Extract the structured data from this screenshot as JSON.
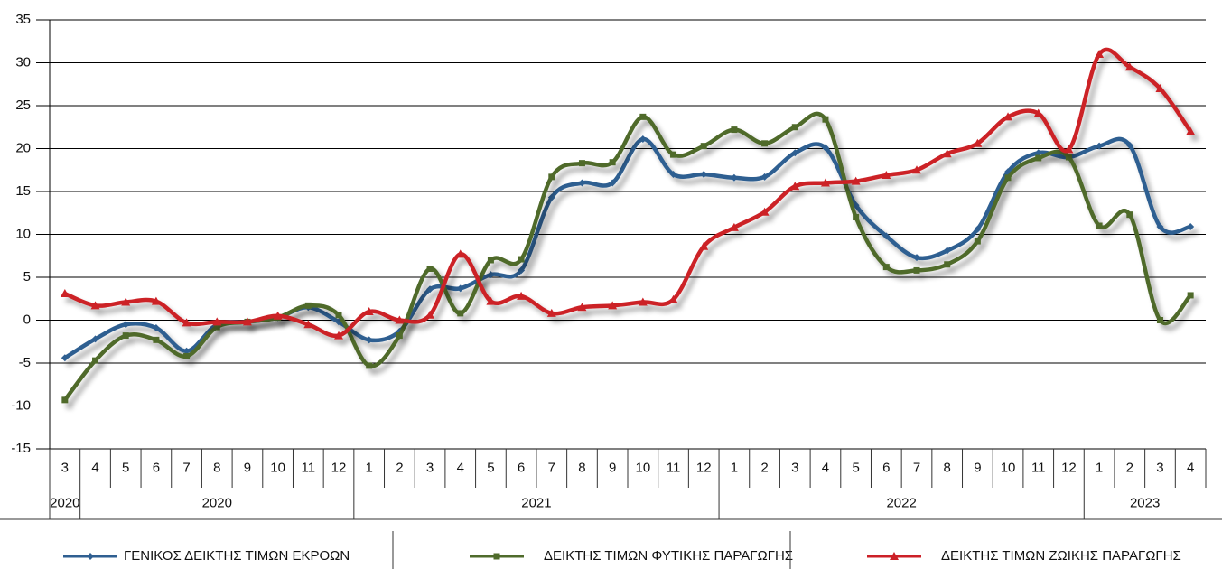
{
  "chart_data": {
    "type": "line",
    "groups": [
      {
        "label": "2020",
        "categories": [
          "3"
        ]
      },
      {
        "label": "2020",
        "categories": [
          "4",
          "5",
          "6",
          "7",
          "8",
          "9",
          "10",
          "11",
          "12"
        ]
      },
      {
        "label": "2021",
        "categories": [
          "1",
          "2",
          "3",
          "4",
          "5",
          "6",
          "7",
          "8",
          "9",
          "10",
          "11",
          "12"
        ]
      },
      {
        "label": "2022",
        "categories": [
          "1",
          "2",
          "3",
          "4",
          "5",
          "6",
          "7",
          "8",
          "9",
          "10",
          "11",
          "12"
        ]
      },
      {
        "label": "2023",
        "categories": [
          "1",
          "2",
          "3",
          "4"
        ]
      }
    ],
    "series": [
      {
        "name": "ΓΕΝΙΚΟΣ ΔΕΙΚΤΗΣ ΤΙΜΩΝ ΕΚΡΟΩΝ",
        "color": "#2f5f91",
        "marker": "diamond",
        "values": [
          -4.4,
          -2.2,
          -0.5,
          -0.9,
          -3.6,
          -0.5,
          -0.2,
          0.3,
          1.5,
          -0.2,
          -2.3,
          -1.3,
          3.6,
          3.7,
          5.3,
          5.8,
          14.3,
          16.0,
          16.0,
          21.1,
          17.0,
          17.0,
          16.6,
          16.7,
          19.5,
          20.1,
          13.4,
          9.8,
          7.3,
          8.1,
          10.6,
          17.3,
          19.5,
          19.0,
          20.3,
          20.4,
          10.9,
          10.9
        ]
      },
      {
        "name": "ΔΕΙΚΤΗΣ ΤΙΜΩΝ ΦΥΤΙΚΗΣ ΠΑΡΑΓΩΓΗΣ",
        "color": "#4f6b2b",
        "marker": "square",
        "values": [
          -9.3,
          -4.7,
          -1.8,
          -2.3,
          -4.2,
          -0.8,
          -0.2,
          0.3,
          1.7,
          0.6,
          -5.3,
          -1.8,
          6.0,
          0.8,
          7.0,
          7.1,
          16.7,
          18.3,
          18.4,
          23.7,
          19.3,
          20.3,
          22.2,
          20.6,
          22.5,
          23.4,
          12.0,
          6.2,
          5.8,
          6.5,
          9.2,
          16.6,
          18.9,
          19.0,
          11.0,
          12.3,
          0.0,
          2.9
        ]
      },
      {
        "name": "ΔΕΙΚΤΗΣ ΤΙΜΩΝ ΖΩΙΚΗΣ ΠΑΡΑΓΩΓΗΣ",
        "color": "#cc2027",
        "marker": "triangle",
        "values": [
          3.1,
          1.7,
          2.1,
          2.2,
          -0.3,
          -0.2,
          -0.2,
          0.5,
          -0.5,
          -1.8,
          1.0,
          0.0,
          0.6,
          7.7,
          2.2,
          2.8,
          0.8,
          1.5,
          1.7,
          2.1,
          2.4,
          8.6,
          10.8,
          12.6,
          15.6,
          16.0,
          16.2,
          16.9,
          17.5,
          19.4,
          20.6,
          23.7,
          24.1,
          19.9,
          31.0,
          29.5,
          27.0,
          22.0
        ]
      }
    ],
    "ylim": [
      -15,
      35
    ],
    "yticks": [
      -15,
      -10,
      -5,
      0,
      5,
      10,
      15,
      20,
      25,
      30,
      35
    ],
    "grid": true
  }
}
